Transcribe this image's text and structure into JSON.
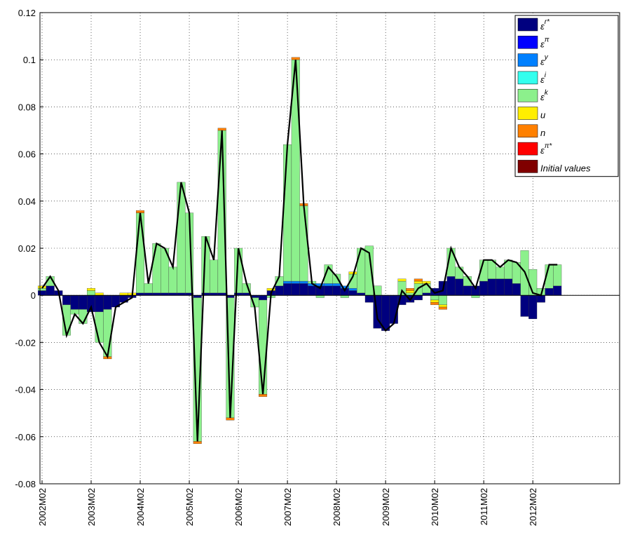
{
  "chart_data": {
    "type": "bar",
    "stacked": true,
    "categories": [
      "2002M02",
      null,
      null,
      null,
      null,
      null,
      "2003M02",
      null,
      null,
      null,
      null,
      null,
      "2004M02",
      null,
      null,
      null,
      null,
      null,
      "2005M02",
      null,
      null,
      null,
      null,
      null,
      "2006M02",
      null,
      null,
      null,
      null,
      null,
      "2007M02",
      null,
      null,
      null,
      null,
      null,
      "2008M02",
      null,
      null,
      null,
      null,
      null,
      "2009M02",
      null,
      null,
      null,
      null,
      null,
      "2010M02",
      null,
      null,
      null,
      null,
      null,
      "2011M02",
      null,
      null,
      null,
      null,
      null,
      "2012M02",
      null,
      null,
      null
    ],
    "ylim": [
      -0.08,
      0.12
    ],
    "yticks": [
      -0.08,
      -0.06,
      -0.04,
      -0.02,
      0,
      0.02,
      0.04,
      0.06,
      0.08,
      0.1,
      0.12
    ],
    "grid": true,
    "legend": "upper right",
    "series": [
      {
        "name": "ε",
        "sup": "r*",
        "color": "#00007f",
        "values": [
          0.002,
          0.004,
          0.002,
          -0.004,
          -0.006,
          -0.006,
          -0.007,
          -0.007,
          -0.006,
          -0.005,
          -0.003,
          -0.001,
          0.001,
          0.001,
          0.001,
          0.001,
          0.001,
          0.001,
          0.001,
          -0.001,
          0.001,
          0.001,
          0.001,
          -0.001,
          0.001,
          0.001,
          -0.001,
          -0.002,
          0.002,
          0.004,
          0.005,
          0.005,
          0.005,
          0.004,
          0.004,
          0.004,
          0.004,
          0.003,
          0.002,
          0.001,
          -0.003,
          -0.014,
          -0.015,
          -0.012,
          -0.004,
          -0.003,
          -0.002,
          0.001,
          0.003,
          0.006,
          0.008,
          0.007,
          0.004,
          0.004,
          0.006,
          0.007,
          0.007,
          0.007,
          0.005,
          -0.009,
          -0.01,
          -0.003,
          0.003,
          0.004
        ]
      },
      {
        "name": "ε",
        "sup": "π",
        "color": "#0000ff",
        "values": [
          0,
          0,
          0,
          0,
          0,
          0,
          0,
          0,
          0,
          0,
          0,
          0,
          0,
          0,
          0,
          0,
          0,
          0,
          0,
          0,
          0,
          0,
          0,
          0,
          0,
          0,
          0,
          0,
          0,
          0,
          0,
          0,
          0,
          0,
          0,
          0,
          0,
          0,
          0,
          0,
          0,
          0,
          0,
          0,
          0,
          0,
          0,
          0,
          0,
          0,
          0,
          0,
          0,
          0,
          0,
          0,
          0,
          0,
          0,
          0,
          0,
          0,
          0,
          0
        ]
      },
      {
        "name": "ε",
        "sup": "y",
        "color": "#0080ff",
        "values": [
          0,
          0,
          0,
          0,
          0,
          0,
          0,
          0,
          0,
          0,
          0,
          0,
          0,
          0,
          0,
          0,
          0,
          0,
          0,
          0,
          0,
          0,
          0,
          0,
          0,
          0,
          0,
          0,
          0,
          0,
          0.001,
          0.001,
          0.001,
          0.001,
          0.001,
          0.001,
          0.001,
          0.001,
          0.001,
          0,
          0,
          0,
          0,
          0,
          0,
          0,
          0,
          0,
          0,
          0,
          0,
          0,
          0,
          0,
          0,
          0,
          0,
          0,
          0,
          0,
          0,
          0,
          0,
          0
        ]
      },
      {
        "name": "ε",
        "sup": "i",
        "color": "#33ffee",
        "values": [
          0,
          0,
          0,
          0,
          0,
          0,
          0,
          0,
          0,
          0,
          0,
          0,
          0,
          0,
          0,
          0,
          0,
          0,
          0,
          0,
          0,
          0,
          0,
          0,
          0,
          0,
          0,
          0,
          0,
          0,
          0,
          0,
          0,
          0,
          0,
          0,
          0,
          0,
          0,
          0,
          0,
          0,
          0,
          0,
          0,
          0,
          0,
          0,
          0,
          0,
          0,
          0,
          0,
          0,
          0,
          0,
          0,
          0,
          0,
          0,
          0,
          0,
          0,
          0
        ]
      },
      {
        "name": "ε",
        "sup": "k",
        "color": "#8cf08c",
        "values": [
          0.001,
          0.004,
          0,
          -0.013,
          -0.002,
          -0.006,
          0.002,
          -0.013,
          -0.02,
          0,
          0,
          0,
          0.034,
          0.004,
          0.021,
          0.019,
          0.011,
          0.047,
          0.034,
          -0.061,
          0.024,
          0.014,
          0.069,
          -0.051,
          0.019,
          0.004,
          -0.004,
          -0.04,
          -0.001,
          0.004,
          0.058,
          0.094,
          0.032,
          0.001,
          -0.001,
          0.008,
          0.004,
          -0.001,
          0.006,
          0.019,
          0.021,
          0.004,
          0,
          0,
          0.006,
          0.001,
          0.005,
          0.004,
          -0.002,
          -0.004,
          0.012,
          0.005,
          0.004,
          -0.001,
          0.009,
          0.008,
          0.005,
          0.008,
          0.009,
          0.019,
          0.011,
          0.003,
          0.01,
          0.009
        ]
      },
      {
        "name": "u",
        "color": "#ffee00",
        "values": [
          0.001,
          0,
          0,
          0,
          0,
          0,
          0.001,
          0.001,
          0,
          0,
          0.001,
          0.001,
          0,
          0,
          0,
          0,
          0,
          0,
          0,
          0,
          0,
          0,
          0,
          0,
          0,
          0,
          0,
          0,
          0.001,
          0,
          0,
          0,
          0,
          0,
          0,
          0,
          0,
          0,
          0.001,
          0,
          0,
          0,
          0,
          0,
          0.001,
          0.001,
          0.001,
          0.001,
          -0.001,
          -0.001,
          0,
          0,
          0,
          0,
          0,
          0,
          0,
          0,
          0,
          0,
          0,
          0,
          0,
          0
        ]
      },
      {
        "name": "n",
        "color": "#ff8000",
        "values": [
          0,
          0,
          0,
          0,
          0,
          0,
          0,
          0,
          -0.001,
          0,
          0,
          0,
          0.001,
          0,
          0,
          0,
          0,
          0,
          0,
          -0.001,
          0,
          0,
          0.001,
          -0.001,
          0,
          0,
          0,
          -0.001,
          0,
          0,
          0,
          0.001,
          0.001,
          0,
          0,
          0,
          0,
          0,
          0,
          0,
          0,
          0,
          0,
          0,
          0,
          0.001,
          0.001,
          0,
          -0.001,
          -0.001,
          0,
          0,
          0,
          0,
          0,
          0,
          0,
          0,
          0,
          0,
          0,
          0,
          0,
          0
        ]
      },
      {
        "name": "ε",
        "sup": "π*",
        "color": "#ff0000",
        "values": [
          0,
          0,
          0,
          0,
          0,
          0,
          0,
          0,
          0,
          0,
          0,
          0,
          0,
          0,
          0,
          0,
          0,
          0,
          0,
          0,
          0,
          0,
          0,
          0,
          0,
          0,
          0,
          0,
          0,
          0,
          0,
          0,
          0,
          0,
          0,
          0,
          0,
          0,
          0,
          0,
          0,
          0,
          0,
          0,
          0,
          0,
          0,
          0,
          0,
          0,
          0,
          0,
          0,
          0,
          0,
          0,
          0,
          0,
          0,
          0,
          0,
          0,
          0,
          0
        ]
      },
      {
        "name": "Initial values",
        "color": "#800000",
        "values": [
          0,
          0,
          0,
          0,
          0,
          0,
          0,
          0,
          0,
          0,
          0,
          0,
          0,
          0,
          0,
          0,
          0,
          0,
          0,
          0,
          0,
          0,
          0,
          0,
          0,
          0,
          0,
          0,
          0,
          0,
          0,
          0,
          0,
          0,
          0,
          0,
          0,
          0,
          0,
          0,
          0,
          0,
          0,
          0,
          0,
          0,
          0,
          0,
          0,
          0,
          0,
          0,
          0,
          0,
          0,
          0,
          0,
          0,
          0,
          0,
          0,
          0,
          0,
          0
        ]
      }
    ],
    "line": {
      "color": "#000000",
      "values": [
        0.003,
        0.008,
        0.002,
        -0.017,
        -0.008,
        -0.012,
        -0.005,
        -0.02,
        -0.026,
        -0.005,
        -0.003,
        -0.001,
        0.035,
        0.005,
        0.022,
        0.02,
        0.012,
        0.048,
        0.035,
        -0.062,
        0.025,
        0.015,
        0.07,
        -0.052,
        0.02,
        0.005,
        -0.005,
        -0.042,
        0.001,
        0.008,
        0.064,
        0.1,
        0.038,
        0.005,
        0.003,
        0.012,
        0.008,
        0.002,
        0.008,
        0.02,
        0.018,
        -0.01,
        -0.015,
        -0.012,
        0.002,
        -0.002,
        0.003,
        0.005,
        0.001,
        0.002,
        0.02,
        0.012,
        0.008,
        0.003,
        0.015,
        0.015,
        0.012,
        0.015,
        0.014,
        0.01,
        0.001,
        0,
        0.013,
        0.013
      ]
    }
  }
}
